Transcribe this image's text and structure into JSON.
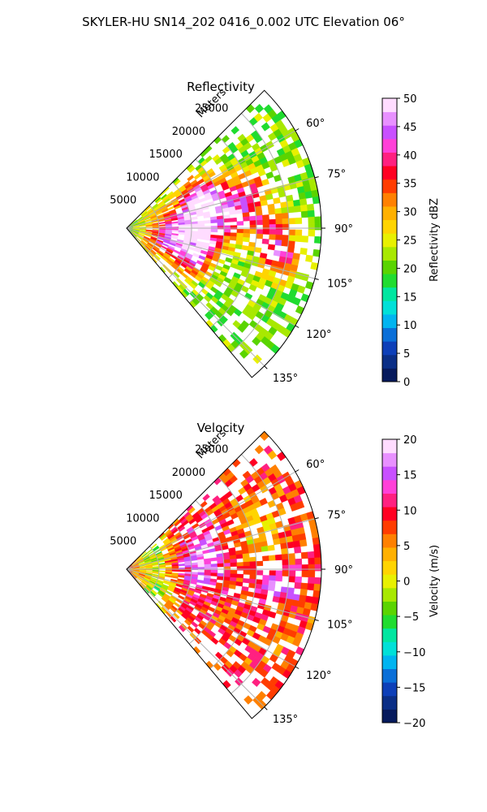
{
  "suptitle": "SKYLER-HU  SN14_202  0416_0.002 UTC Elevation 06°",
  "chart_data": [
    {
      "type": "heatmap",
      "subtype": "polar-sector",
      "title": "Reflectivity",
      "radial_label": "Meters",
      "radial_ticks": [
        "5000",
        "10000",
        "15000",
        "20000",
        "25000"
      ],
      "radial_tick_values": [
        5000,
        10000,
        15000,
        20000,
        25000
      ],
      "rmax": 30000,
      "azimuth_range_deg": [
        45,
        140
      ],
      "azimuth_ticks": [
        "60°",
        "75°",
        "90°",
        "105°",
        "120°",
        "135°"
      ],
      "azimuth_tick_values": [
        60,
        75,
        90,
        105,
        120,
        135
      ],
      "colorbar": {
        "label": "Reflectivity dBZ",
        "range": [
          0,
          50
        ],
        "ticks": [
          "0",
          "5",
          "10",
          "15",
          "20",
          "25",
          "30",
          "35",
          "40",
          "45",
          "50"
        ],
        "tick_values": [
          0,
          5,
          10,
          15,
          20,
          25,
          30,
          35,
          40,
          45,
          50
        ],
        "colors": [
          "#061a5c",
          "#0a2e86",
          "#0d3fb8",
          "#0a6fd8",
          "#00b4f0",
          "#00e0d8",
          "#00e6a0",
          "#20dc30",
          "#5ad400",
          "#a8e800",
          "#e8f000",
          "#ffd400",
          "#ffb000",
          "#ff8000",
          "#ff3c00",
          "#ff0022",
          "#ff2080",
          "#ff40d8",
          "#c850ff",
          "#e890ff",
          "#ffdcff"
        ]
      },
      "field_summary": {
        "background_level": 21,
        "cell_levels": [
          {
            "az": 75,
            "range": 12000,
            "value": 40
          },
          {
            "az": 83,
            "range": 17000,
            "value": 39
          },
          {
            "az": 68,
            "range": 13000,
            "value": 37
          },
          {
            "az": 96,
            "range": 12500,
            "value": 39
          },
          {
            "az": 112,
            "range": 11000,
            "value": 40
          },
          {
            "az": 101,
            "range": 24000,
            "value": 38
          },
          {
            "az": 90,
            "range": 22500,
            "value": 36
          },
          {
            "az": 72,
            "range": 19500,
            "value": 35
          },
          {
            "az": 106,
            "range": 6000,
            "value": 35
          },
          {
            "az": 87,
            "range": 8000,
            "value": 33
          }
        ]
      }
    },
    {
      "type": "heatmap",
      "subtype": "polar-sector",
      "title": "Velocity",
      "radial_label": "Meters",
      "radial_ticks": [
        "5000",
        "10000",
        "15000",
        "20000",
        "25000"
      ],
      "radial_tick_values": [
        5000,
        10000,
        15000,
        20000,
        25000
      ],
      "rmax": 30000,
      "azimuth_range_deg": [
        45,
        140
      ],
      "azimuth_ticks": [
        "60°",
        "75°",
        "90°",
        "105°",
        "120°",
        "135°"
      ],
      "azimuth_tick_values": [
        60,
        75,
        90,
        105,
        120,
        135
      ],
      "colorbar": {
        "label": "Velocity (m/s)",
        "range": [
          -20,
          20
        ],
        "ticks": [
          "−20",
          "−15",
          "−10",
          "−5",
          "0",
          "5",
          "10",
          "15",
          "20"
        ],
        "tick_values": [
          -20,
          -15,
          -10,
          -5,
          0,
          5,
          10,
          15,
          20
        ],
        "colors": [
          "#061a5c",
          "#0a2e86",
          "#0d3fb8",
          "#0a6fd8",
          "#00b4f0",
          "#00e0d8",
          "#00e6a0",
          "#20dc30",
          "#5ad400",
          "#a8e800",
          "#e8f000",
          "#ffd400",
          "#ffb000",
          "#ff8000",
          "#ff3c00",
          "#ff0022",
          "#ff2080",
          "#ff40d8",
          "#c850ff",
          "#e890ff",
          "#ffdcff"
        ]
      },
      "field_summary": {
        "background_level": 8,
        "cell_levels": [
          {
            "az": 88,
            "range": 11000,
            "value": 14
          },
          {
            "az": 72,
            "range": 13000,
            "value": 15
          },
          {
            "az": 100,
            "range": 14000,
            "value": 10
          },
          {
            "az": 110,
            "range": 9000,
            "value": 9
          },
          {
            "az": 96,
            "range": 24000,
            "value": 15
          },
          {
            "az": 80,
            "range": 21000,
            "value": 2
          },
          {
            "az": 65,
            "range": 22000,
            "value": 3
          },
          {
            "az": 125,
            "range": 6000,
            "value": -3
          },
          {
            "az": 55,
            "range": 5000,
            "value": -2
          }
        ]
      }
    }
  ]
}
